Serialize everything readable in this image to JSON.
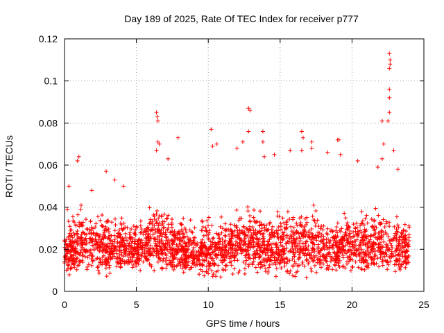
{
  "chart_data": {
    "type": "scatter",
    "title": "Day 189 of 2025, Rate Of TEC Index for receiver p777",
    "xlabel": "GPS time / hours",
    "ylabel": "ROTI / TECUs",
    "xlim": [
      0,
      25
    ],
    "ylim": [
      0,
      0.12
    ],
    "xticks": [
      0,
      5,
      10,
      15,
      20,
      25
    ],
    "yticks": [
      0,
      0.02,
      0.04,
      0.06,
      0.08,
      0.1,
      0.12
    ],
    "xtick_labels": [
      "0",
      "5",
      "10",
      "15",
      "20",
      "25"
    ],
    "ytick_labels": [
      "0",
      "0.02",
      "0.04",
      "0.06",
      "0.08",
      "0.1",
      "0.12"
    ],
    "grid": true,
    "marker": "plus",
    "color": "#ff0000",
    "series": [
      {
        "name": "ROTI",
        "x_range": [
          0,
          24
        ],
        "outliers": [
          {
            "x": 0.2,
            "y": 0.039
          },
          {
            "x": 0.3,
            "y": 0.05
          },
          {
            "x": 0.9,
            "y": 0.062
          },
          {
            "x": 1.0,
            "y": 0.064
          },
          {
            "x": 1.9,
            "y": 0.048
          },
          {
            "x": 2.9,
            "y": 0.057
          },
          {
            "x": 3.5,
            "y": 0.053
          },
          {
            "x": 4.1,
            "y": 0.05
          },
          {
            "x": 6.4,
            "y": 0.085
          },
          {
            "x": 6.45,
            "y": 0.083
          },
          {
            "x": 6.5,
            "y": 0.081
          },
          {
            "x": 6.5,
            "y": 0.071
          },
          {
            "x": 6.6,
            "y": 0.07
          },
          {
            "x": 6.4,
            "y": 0.067
          },
          {
            "x": 7.2,
            "y": 0.063
          },
          {
            "x": 7.9,
            "y": 0.073
          },
          {
            "x": 10.2,
            "y": 0.077
          },
          {
            "x": 10.3,
            "y": 0.069
          },
          {
            "x": 10.6,
            "y": 0.07
          },
          {
            "x": 12.0,
            "y": 0.068
          },
          {
            "x": 12.8,
            "y": 0.087
          },
          {
            "x": 12.9,
            "y": 0.086
          },
          {
            "x": 12.8,
            "y": 0.076
          },
          {
            "x": 12.4,
            "y": 0.071
          },
          {
            "x": 13.8,
            "y": 0.076
          },
          {
            "x": 13.8,
            "y": 0.071
          },
          {
            "x": 13.9,
            "y": 0.064
          },
          {
            "x": 14.6,
            "y": 0.065
          },
          {
            "x": 15.7,
            "y": 0.067
          },
          {
            "x": 16.5,
            "y": 0.076
          },
          {
            "x": 16.6,
            "y": 0.073
          },
          {
            "x": 16.5,
            "y": 0.067
          },
          {
            "x": 17.2,
            "y": 0.071
          },
          {
            "x": 17.2,
            "y": 0.068
          },
          {
            "x": 18.3,
            "y": 0.066
          },
          {
            "x": 19.0,
            "y": 0.072
          },
          {
            "x": 19.1,
            "y": 0.072
          },
          {
            "x": 19.2,
            "y": 0.065
          },
          {
            "x": 20.4,
            "y": 0.062
          },
          {
            "x": 21.8,
            "y": 0.059
          },
          {
            "x": 22.1,
            "y": 0.081
          },
          {
            "x": 22.2,
            "y": 0.07
          },
          {
            "x": 22.1,
            "y": 0.063
          },
          {
            "x": 22.5,
            "y": 0.081
          },
          {
            "x": 22.6,
            "y": 0.092
          },
          {
            "x": 22.6,
            "y": 0.096
          },
          {
            "x": 22.6,
            "y": 0.085
          },
          {
            "x": 22.65,
            "y": 0.11
          },
          {
            "x": 22.65,
            "y": 0.108
          },
          {
            "x": 22.6,
            "y": 0.106
          },
          {
            "x": 22.6,
            "y": 0.113
          },
          {
            "x": 22.9,
            "y": 0.067
          },
          {
            "x": 23.2,
            "y": 0.058
          }
        ],
        "band_profile": [
          {
            "x": 0,
            "low": 0.007,
            "high": 0.032
          },
          {
            "x": 1,
            "low": 0.006,
            "high": 0.045
          },
          {
            "x": 2,
            "low": 0.006,
            "high": 0.04
          },
          {
            "x": 3,
            "low": 0.005,
            "high": 0.042
          },
          {
            "x": 4,
            "low": 0.007,
            "high": 0.04
          },
          {
            "x": 5,
            "low": 0.008,
            "high": 0.038
          },
          {
            "x": 6,
            "low": 0.008,
            "high": 0.045
          },
          {
            "x": 7,
            "low": 0.008,
            "high": 0.043
          },
          {
            "x": 8,
            "low": 0.007,
            "high": 0.037
          },
          {
            "x": 9,
            "low": 0.006,
            "high": 0.038
          },
          {
            "x": 10,
            "low": 0.005,
            "high": 0.04
          },
          {
            "x": 11,
            "low": 0.005,
            "high": 0.04
          },
          {
            "x": 12,
            "low": 0.007,
            "high": 0.042
          },
          {
            "x": 13,
            "low": 0.007,
            "high": 0.045
          },
          {
            "x": 14,
            "low": 0.006,
            "high": 0.04
          },
          {
            "x": 15,
            "low": 0.006,
            "high": 0.043
          },
          {
            "x": 16,
            "low": 0.006,
            "high": 0.046
          },
          {
            "x": 17,
            "low": 0.006,
            "high": 0.046
          },
          {
            "x": 18,
            "low": 0.007,
            "high": 0.04
          },
          {
            "x": 19,
            "low": 0.007,
            "high": 0.043
          },
          {
            "x": 20,
            "low": 0.007,
            "high": 0.042
          },
          {
            "x": 21,
            "low": 0.007,
            "high": 0.042
          },
          {
            "x": 22,
            "low": 0.008,
            "high": 0.044
          },
          {
            "x": 23,
            "low": 0.007,
            "high": 0.04
          },
          {
            "x": 24,
            "low": 0.008,
            "high": 0.038
          }
        ],
        "typical_range": [
          0.005,
          0.04
        ],
        "typical_center": 0.018
      }
    ]
  }
}
